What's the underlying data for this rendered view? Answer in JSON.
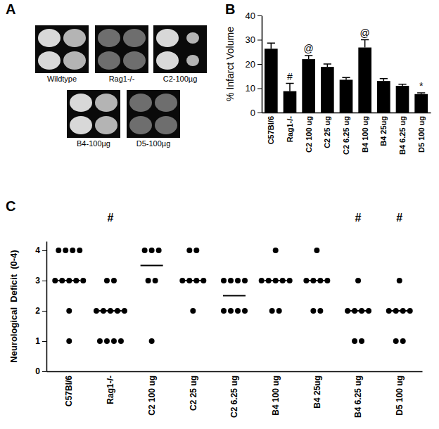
{
  "chart_data": [
    {
      "type": "image",
      "title": "A",
      "categories": [
        "Wildtype",
        "Rag1-/-",
        "C2-100µg",
        "B4-100µg",
        "D5-100µg"
      ]
    },
    {
      "type": "bar",
      "title": "B",
      "y_label": "% Infarct Volume",
      "color": "#000000",
      "categories": [
        "C57Bl/6",
        "Rag1-/-",
        "C2 100 ug",
        "C2 25 ug",
        "C2 6.25 ug",
        "B4 100 ug",
        "B4 25ug",
        "B4 6.25 ug",
        "D5 100 ug"
      ],
      "values": [
        26.3,
        8.8,
        22,
        18.8,
        13.5,
        26.8,
        13,
        11,
        7.6
      ],
      "errors": [
        2.3,
        3.2,
        1.5,
        1.2,
        0.9,
        3.2,
        1,
        0.7,
        0.5
      ],
      "ylim": [
        0,
        40
      ],
      "yticks": [
        0,
        10,
        20,
        30,
        40
      ],
      "annotations": [
        {
          "text": "#",
          "category": "Rag1-/-"
        },
        {
          "text": "@",
          "category": "C2 100 ug"
        },
        {
          "text": "@",
          "category": "B4 100 ug"
        },
        {
          "text": "*",
          "category": "D5 100 ug"
        }
      ]
    },
    {
      "type": "scatter",
      "title": "C",
      "y_label": "Neurological  Deficit  (0-4)",
      "color": "#000000",
      "marker": "circle",
      "categories": [
        "C57Bl/6",
        "Rag1-/-",
        "C2 100 ug",
        "C2 25 ug",
        "C2 6.25 ug",
        "B4 100 ug",
        "B4 25ug",
        "B4 6.25 ug",
        "D5 100 ug"
      ],
      "values": [
        [
          4,
          4,
          4,
          4,
          3,
          3,
          3,
          3,
          3,
          2,
          1
        ],
        [
          3,
          3,
          2,
          2,
          2,
          2,
          2,
          1,
          1,
          1,
          1
        ],
        [
          4,
          4,
          4,
          3,
          3,
          1
        ],
        [
          4,
          4,
          3,
          3,
          3,
          3,
          2
        ],
        [
          3,
          3,
          3,
          3,
          2,
          2,
          2,
          2
        ],
        [
          4,
          3,
          3,
          3,
          3,
          3,
          2,
          2
        ],
        [
          4,
          3,
          3,
          3,
          3,
          2,
          2
        ],
        [
          3,
          2,
          2,
          2,
          2,
          1,
          1
        ],
        [
          3,
          2,
          2,
          2,
          2,
          1,
          1
        ]
      ],
      "medians": [
        3,
        2,
        3.5,
        3,
        2.5,
        3,
        3,
        2,
        2
      ],
      "ylim": [
        0,
        4.3
      ],
      "yticks": [
        0,
        1,
        2,
        3,
        4
      ],
      "annotations": [
        {
          "text": "#",
          "category": "Rag1-/-"
        },
        {
          "text": "#",
          "category": "B4 6.25 ug"
        },
        {
          "text": "#",
          "category": "D5 100 ug"
        }
      ]
    }
  ]
}
